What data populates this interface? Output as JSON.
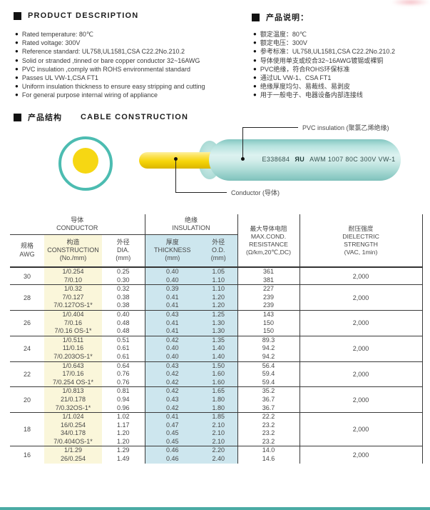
{
  "product_description": {
    "title_en": "PRODUCT DESCRIPTION",
    "title_zh": "产品说明：",
    "bullets_en": [
      "Rated temperature: 80℃",
      "Rated voltage: 300V",
      "Reference standard: UL758,UL1581,CSA C22.2No.210.2",
      "Solid or stranded ,tinned or bare copper conductor 32~16AWG",
      "PVC insulation ,comply with ROHS environmental standard",
      "Passes UL VW-1,CSA FT1",
      "Uniform insulation thickness to ensure easy stripping and cutting",
      "For general purpose internal wiring of appliance"
    ],
    "bullets_zh": [
      "额定温度：80℃",
      "额定电压：300V",
      "参考标准：UL758,UL1581,CSA C22.2No.210.2",
      "导体使用单支或绞合32~16AWG镀锡或裸铜",
      "PVC绝缘，符合ROHS环保标准",
      "通过UL VW-1、CSA FT1",
      "绝缘厚度均匀、易裁线、易剥皮",
      "用于一般电子、电器设备内部连接线"
    ]
  },
  "construction": {
    "heading_zh": "产品结构",
    "heading_en": "CABLE CONSTRUCTION",
    "marking_prefix": "E338684",
    "ul_mark_r": "R",
    "ul_mark_u": "U",
    "marking_suffix": "AWM 1007 80C 300V VW-1",
    "label_insulation": "PVC insulation (聚氯乙烯绝缘)",
    "label_conductor": "Conductor (导体)"
  },
  "table": {
    "group_headers": [
      {
        "zh": "导体",
        "en": "CONDUCTOR"
      },
      {
        "zh": "绝缘",
        "en": "INSULATION"
      }
    ],
    "columns": [
      {
        "id": "awg",
        "label": "规格\nAWG"
      },
      {
        "id": "construction",
        "label": "构造\nCONSTRUCTION\n(No./mm)"
      },
      {
        "id": "dia",
        "label": "外径\nDIA.\n(mm)"
      },
      {
        "id": "thickness",
        "label": "厚度\nTHICKNESS\n(mm)"
      },
      {
        "id": "od",
        "label": "外径\nO.D.\n(mm)"
      },
      {
        "id": "resistance",
        "label": "最大导体电阻\nMAX.COND.\nRESISTANCE\n(Ω/km,20℃,DC)"
      },
      {
        "id": "dielectric",
        "label": "耐压强度\nDIELECTRIC\nSTRENGTH\n(VAC, 1min)"
      }
    ],
    "groups": [
      {
        "awg": "30",
        "construction": [
          "1/0.254",
          "7/0.10"
        ],
        "dia": [
          "0.25",
          "0.30"
        ],
        "thickness": [
          "0.40",
          "0.40"
        ],
        "od": [
          "1.05",
          "1.10"
        ],
        "resistance": [
          "361",
          "381"
        ],
        "dielectric": "2,000"
      },
      {
        "awg": "28",
        "construction": [
          "1/0.32",
          "7/0.127",
          "7/0.127OS-1*"
        ],
        "dia": [
          "0.32",
          "0.38",
          "0.38"
        ],
        "thickness": [
          "0.39",
          "0.41",
          "0.41"
        ],
        "od": [
          "1.10",
          "1.20",
          "1.20"
        ],
        "resistance": [
          "227",
          "239",
          "239"
        ],
        "dielectric": "2,000"
      },
      {
        "awg": "26",
        "construction": [
          "1/0.404",
          "7/0.16",
          "7/0.16 OS-1*"
        ],
        "dia": [
          "0.40",
          "0.48",
          "0.48"
        ],
        "thickness": [
          "0.43",
          "0.41",
          "0.41"
        ],
        "od": [
          "1.25",
          "1.30",
          "1.30"
        ],
        "resistance": [
          "143",
          "150",
          "150"
        ],
        "dielectric": "2,000"
      },
      {
        "awg": "24",
        "construction": [
          "1/0.511",
          "11/0.16",
          "7/0.203OS-1*"
        ],
        "dia": [
          "0.51",
          "0.61",
          "0.61"
        ],
        "thickness": [
          "0.42",
          "0.40",
          "0.40"
        ],
        "od": [
          "1.35",
          "1.40",
          "1.40"
        ],
        "resistance": [
          "89.3",
          "94.2",
          "94.2"
        ],
        "dielectric": "2,000"
      },
      {
        "awg": "22",
        "construction": [
          "1/0.643",
          "17/0.16",
          "7/0.254 OS-1*"
        ],
        "dia": [
          "0.64",
          "0.76",
          "0.76"
        ],
        "thickness": [
          "0.43",
          "0.42",
          "0.42"
        ],
        "od": [
          "1.50",
          "1.60",
          "1.60"
        ],
        "resistance": [
          "56.4",
          "59.4",
          "59.4"
        ],
        "dielectric": "2,000"
      },
      {
        "awg": "20",
        "construction": [
          "1/0.813",
          "21/0.178",
          "7/0.32OS-1*"
        ],
        "dia": [
          "0.81",
          "0.94",
          "0.96"
        ],
        "thickness": [
          "0.42",
          "0.43",
          "0.42"
        ],
        "od": [
          "1.65",
          "1.80",
          "1.80"
        ],
        "resistance": [
          "35.2",
          "36.7",
          "36.7"
        ],
        "dielectric": "2,000"
      },
      {
        "awg": "18",
        "construction": [
          "1/1.024",
          "16/0.254",
          "34/0.178",
          "7/0.404OS-1*"
        ],
        "dia": [
          "1.02",
          "1.17",
          "1.20",
          "1.20"
        ],
        "thickness": [
          "0.41",
          "0.47",
          "0.45",
          "0.45"
        ],
        "od": [
          "1.85",
          "2.10",
          "2.10",
          "2.10"
        ],
        "resistance": [
          "22.2",
          "23.2",
          "23.2",
          "23.2"
        ],
        "dielectric": "2,000"
      },
      {
        "awg": "16",
        "construction": [
          "1/1.29",
          "26/0.254"
        ],
        "dia": [
          "1.29",
          "1.49"
        ],
        "thickness": [
          "0.46",
          "0.46"
        ],
        "od": [
          "2.20",
          "2.40"
        ],
        "resistance": [
          "14.0",
          "14.6"
        ],
        "dielectric": "2,000"
      }
    ]
  }
}
